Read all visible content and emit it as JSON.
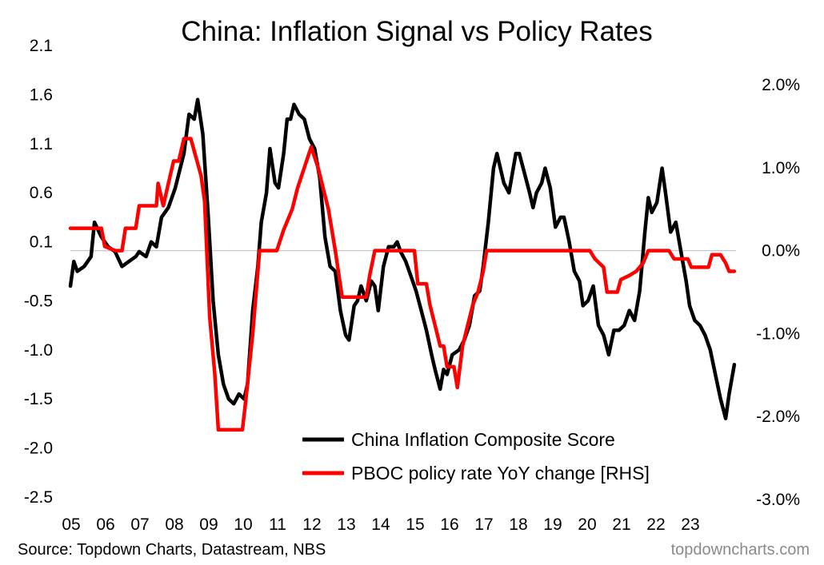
{
  "chart_data": {
    "type": "line",
    "title": "China: Inflation Signal vs Policy Rates",
    "source": "Source: Topdown Charts, Datastream, NBS",
    "brand": "topdowncharts.com",
    "x_tick_labels": [
      "05",
      "06",
      "07",
      "08",
      "09",
      "10",
      "11",
      "12",
      "13",
      "14",
      "15",
      "16",
      "17",
      "18",
      "19",
      "20",
      "21",
      "22",
      "23"
    ],
    "x_tick_years": [
      2005,
      2006,
      2007,
      2008,
      2009,
      2010,
      2011,
      2012,
      2013,
      2014,
      2015,
      2016,
      2017,
      2018,
      2019,
      2020,
      2021,
      2022,
      2023
    ],
    "y_left": {
      "ticks": [
        2.1,
        1.6,
        1.1,
        0.6,
        0.1,
        -0.5,
        -1.0,
        -1.5,
        -2.0,
        -2.5
      ],
      "tick_labels": [
        "2.1",
        "1.6",
        "1.1",
        "0.6",
        "0.1",
        "-0.5",
        "-1.0",
        "-1.5",
        "-2.0",
        "-2.5"
      ],
      "range": [
        -2.5,
        2.1
      ]
    },
    "y_right": {
      "ticks": [
        2.0,
        1.0,
        0.0,
        -1.0,
        -2.0,
        -3.0
      ],
      "tick_labels": [
        "2.0%",
        "1.0%",
        "0.0%",
        "-1.0%",
        "-2.0%",
        "-3.0%"
      ],
      "range": [
        -3.0,
        2.0
      ]
    },
    "zero_line": 0.0,
    "legend_position": "bottom-center",
    "series": [
      {
        "name": "China Inflation Composite Score",
        "axis": "left",
        "color": "#000000",
        "points": [
          [
            2005.0,
            -0.35
          ],
          [
            2005.1,
            -0.1
          ],
          [
            2005.2,
            -0.2
          ],
          [
            2005.4,
            -0.15
          ],
          [
            2005.6,
            -0.05
          ],
          [
            2005.7,
            0.3
          ],
          [
            2005.9,
            0.15
          ],
          [
            2006.1,
            0.05
          ],
          [
            2006.3,
            0.0
          ],
          [
            2006.5,
            -0.15
          ],
          [
            2006.7,
            -0.1
          ],
          [
            2006.9,
            -0.05
          ],
          [
            2007.0,
            0.0
          ],
          [
            2007.2,
            -0.05
          ],
          [
            2007.35,
            0.1
          ],
          [
            2007.5,
            0.05
          ],
          [
            2007.65,
            0.35
          ],
          [
            2007.85,
            0.45
          ],
          [
            2008.05,
            0.65
          ],
          [
            2008.3,
            1.0
          ],
          [
            2008.45,
            1.4
          ],
          [
            2008.6,
            1.35
          ],
          [
            2008.7,
            1.55
          ],
          [
            2008.85,
            1.2
          ],
          [
            2009.0,
            0.4
          ],
          [
            2009.15,
            -0.5
          ],
          [
            2009.3,
            -1.05
          ],
          [
            2009.45,
            -1.35
          ],
          [
            2009.6,
            -1.5
          ],
          [
            2009.75,
            -1.55
          ],
          [
            2009.9,
            -1.45
          ],
          [
            2010.05,
            -1.5
          ],
          [
            2010.15,
            -1.35
          ],
          [
            2010.3,
            -0.6
          ],
          [
            2010.45,
            -0.15
          ],
          [
            2010.55,
            0.3
          ],
          [
            2010.7,
            0.6
          ],
          [
            2010.8,
            1.05
          ],
          [
            2010.95,
            0.7
          ],
          [
            2011.05,
            0.65
          ],
          [
            2011.2,
            1.0
          ],
          [
            2011.3,
            1.35
          ],
          [
            2011.4,
            1.35
          ],
          [
            2011.5,
            1.5
          ],
          [
            2011.65,
            1.4
          ],
          [
            2011.8,
            1.35
          ],
          [
            2011.95,
            1.15
          ],
          [
            2012.1,
            1.05
          ],
          [
            2012.25,
            0.75
          ],
          [
            2012.4,
            0.15
          ],
          [
            2012.55,
            -0.15
          ],
          [
            2012.7,
            -0.2
          ],
          [
            2012.85,
            -0.6
          ],
          [
            2013.0,
            -0.85
          ],
          [
            2013.1,
            -0.9
          ],
          [
            2013.25,
            -0.55
          ],
          [
            2013.35,
            -0.5
          ],
          [
            2013.45,
            -0.35
          ],
          [
            2013.6,
            -0.5
          ],
          [
            2013.75,
            -0.3
          ],
          [
            2013.85,
            -0.35
          ],
          [
            2013.95,
            -0.6
          ],
          [
            2014.1,
            -0.15
          ],
          [
            2014.25,
            0.05
          ],
          [
            2014.4,
            0.05
          ],
          [
            2014.5,
            0.1
          ],
          [
            2014.6,
            0.0
          ],
          [
            2014.75,
            -0.1
          ],
          [
            2014.9,
            -0.25
          ],
          [
            2015.05,
            -0.4
          ],
          [
            2015.2,
            -0.6
          ],
          [
            2015.35,
            -0.8
          ],
          [
            2015.5,
            -1.05
          ],
          [
            2015.6,
            -1.2
          ],
          [
            2015.75,
            -1.4
          ],
          [
            2015.85,
            -1.2
          ],
          [
            2015.95,
            -1.25
          ],
          [
            2016.1,
            -1.05
          ],
          [
            2016.3,
            -1.0
          ],
          [
            2016.45,
            -0.9
          ],
          [
            2016.6,
            -0.75
          ],
          [
            2016.75,
            -0.45
          ],
          [
            2016.9,
            -0.4
          ],
          [
            2017.0,
            -0.15
          ],
          [
            2017.15,
            0.3
          ],
          [
            2017.3,
            0.85
          ],
          [
            2017.4,
            1.0
          ],
          [
            2017.6,
            0.7
          ],
          [
            2017.75,
            0.6
          ],
          [
            2017.95,
            1.0
          ],
          [
            2018.05,
            1.0
          ],
          [
            2018.2,
            0.8
          ],
          [
            2018.35,
            0.6
          ],
          [
            2018.45,
            0.45
          ],
          [
            2018.55,
            0.6
          ],
          [
            2018.7,
            0.7
          ],
          [
            2018.8,
            0.85
          ],
          [
            2018.95,
            0.65
          ],
          [
            2019.1,
            0.25
          ],
          [
            2019.25,
            0.35
          ],
          [
            2019.35,
            0.35
          ],
          [
            2019.5,
            0.1
          ],
          [
            2019.65,
            -0.2
          ],
          [
            2019.8,
            -0.3
          ],
          [
            2019.9,
            -0.55
          ],
          [
            2020.05,
            -0.5
          ],
          [
            2020.2,
            -0.35
          ],
          [
            2020.35,
            -0.75
          ],
          [
            2020.5,
            -0.85
          ],
          [
            2020.65,
            -1.05
          ],
          [
            2020.8,
            -0.8
          ],
          [
            2020.95,
            -0.8
          ],
          [
            2021.1,
            -0.75
          ],
          [
            2021.25,
            -0.6
          ],
          [
            2021.4,
            -0.7
          ],
          [
            2021.55,
            -0.4
          ],
          [
            2021.7,
            0.2
          ],
          [
            2021.8,
            0.55
          ],
          [
            2021.9,
            0.4
          ],
          [
            2022.05,
            0.5
          ],
          [
            2022.2,
            0.85
          ],
          [
            2022.3,
            0.6
          ],
          [
            2022.45,
            0.2
          ],
          [
            2022.6,
            0.3
          ],
          [
            2022.75,
            0.0
          ],
          [
            2022.9,
            -0.3
          ],
          [
            2023.0,
            -0.55
          ],
          [
            2023.15,
            -0.7
          ],
          [
            2023.3,
            -0.75
          ],
          [
            2023.45,
            -0.85
          ],
          [
            2023.6,
            -1.0
          ],
          [
            2023.75,
            -1.25
          ],
          [
            2023.9,
            -1.5
          ],
          [
            2024.05,
            -1.7
          ],
          [
            2024.15,
            -1.45
          ],
          [
            2024.3,
            -1.15
          ]
        ]
      },
      {
        "name": "PBOC policy rate YoY change [RHS]",
        "axis": "right",
        "color": "#ff0000",
        "points": [
          [
            2005.0,
            0.27
          ],
          [
            2005.7,
            0.27
          ],
          [
            2005.9,
            0.27
          ],
          [
            2006.0,
            0.05
          ],
          [
            2006.3,
            0.0
          ],
          [
            2006.5,
            0.0
          ],
          [
            2006.6,
            0.27
          ],
          [
            2006.9,
            0.27
          ],
          [
            2007.0,
            0.54
          ],
          [
            2007.3,
            0.54
          ],
          [
            2007.5,
            0.54
          ],
          [
            2007.55,
            0.81
          ],
          [
            2007.7,
            0.54
          ],
          [
            2007.85,
            0.81
          ],
          [
            2008.0,
            1.08
          ],
          [
            2008.15,
            1.08
          ],
          [
            2008.3,
            1.35
          ],
          [
            2008.5,
            1.35
          ],
          [
            2008.6,
            1.2
          ],
          [
            2008.8,
            0.9
          ],
          [
            2008.9,
            0.6
          ],
          [
            2009.05,
            -0.8
          ],
          [
            2009.2,
            -1.5
          ],
          [
            2009.3,
            -2.16
          ],
          [
            2010.0,
            -2.16
          ],
          [
            2010.1,
            -1.8
          ],
          [
            2010.3,
            -1.0
          ],
          [
            2010.5,
            0.0
          ],
          [
            2011.0,
            0.0
          ],
          [
            2011.2,
            0.25
          ],
          [
            2011.45,
            0.5
          ],
          [
            2011.6,
            0.75
          ],
          [
            2011.8,
            1.0
          ],
          [
            2012.0,
            1.25
          ],
          [
            2012.2,
            1.0
          ],
          [
            2012.35,
            0.75
          ],
          [
            2012.5,
            0.5
          ],
          [
            2012.6,
            0.25
          ],
          [
            2012.7,
            0.0
          ],
          [
            2012.9,
            -0.56
          ],
          [
            2013.5,
            -0.56
          ],
          [
            2013.6,
            -0.56
          ],
          [
            2013.7,
            -0.3
          ],
          [
            2013.85,
            0.0
          ],
          [
            2015.0,
            0.0
          ],
          [
            2015.1,
            -0.4
          ],
          [
            2015.35,
            -0.4
          ],
          [
            2015.45,
            -0.65
          ],
          [
            2015.6,
            -0.9
          ],
          [
            2015.75,
            -1.15
          ],
          [
            2015.85,
            -1.15
          ],
          [
            2015.95,
            -1.4
          ],
          [
            2016.05,
            -1.4
          ],
          [
            2016.15,
            -1.4
          ],
          [
            2016.25,
            -1.65
          ],
          [
            2016.4,
            -1.15
          ],
          [
            2016.55,
            -0.9
          ],
          [
            2016.7,
            -0.65
          ],
          [
            2016.85,
            -0.5
          ],
          [
            2017.0,
            -0.25
          ],
          [
            2017.1,
            0.0
          ],
          [
            2020.1,
            0.0
          ],
          [
            2020.25,
            -0.1
          ],
          [
            2020.5,
            -0.2
          ],
          [
            2020.6,
            -0.5
          ],
          [
            2020.9,
            -0.5
          ],
          [
            2021.0,
            -0.35
          ],
          [
            2021.25,
            -0.3
          ],
          [
            2021.45,
            -0.25
          ],
          [
            2021.65,
            -0.15
          ],
          [
            2021.8,
            0.0
          ],
          [
            2022.4,
            0.0
          ],
          [
            2022.55,
            -0.1
          ],
          [
            2022.95,
            -0.1
          ],
          [
            2023.05,
            -0.2
          ],
          [
            2023.55,
            -0.2
          ],
          [
            2023.65,
            -0.05
          ],
          [
            2023.9,
            -0.05
          ],
          [
            2024.05,
            -0.15
          ],
          [
            2024.15,
            -0.25
          ],
          [
            2024.3,
            -0.25
          ]
        ]
      }
    ]
  }
}
